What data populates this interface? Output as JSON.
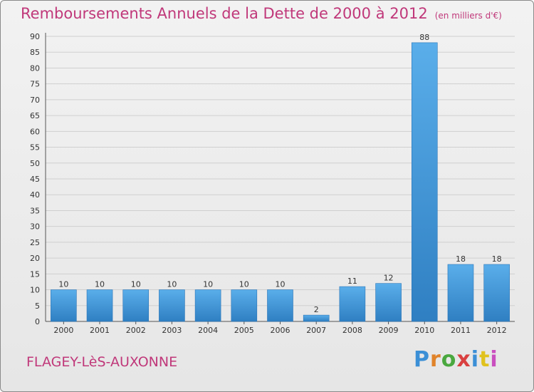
{
  "header": {
    "title": "Remboursements Annuels de la Dette de 2000 à 2012",
    "unit": "(en milliers d'€)"
  },
  "footer": {
    "commune": "FLAGEY-LèS-AUXONNE",
    "brand": "Proxiti",
    "brand_colors": [
      "#3b8fd6",
      "#e0832a",
      "#4aa83f",
      "#d94040",
      "#3b8fd6",
      "#e0c21e",
      "#c94fbf"
    ]
  },
  "colors": {
    "bar": "#4a9fe0",
    "bar_dark": "#2e7fc4",
    "accent": "#c0387a",
    "grid": "#cfcfcf"
  },
  "chart_data": {
    "type": "bar",
    "title": "Remboursements Annuels de la Dette de 2000 à 2012",
    "xlabel": "",
    "ylabel": "",
    "categories": [
      "2000",
      "2001",
      "2002",
      "2003",
      "2004",
      "2005",
      "2006",
      "2007",
      "2008",
      "2009",
      "2010",
      "2011",
      "2012"
    ],
    "values": [
      10,
      10,
      10,
      10,
      10,
      10,
      10,
      2,
      11,
      12,
      88,
      18,
      18
    ],
    "ylim": [
      0,
      90
    ],
    "yticks": [
      0,
      5,
      10,
      15,
      20,
      25,
      30,
      35,
      40,
      45,
      50,
      55,
      60,
      65,
      70,
      75,
      80,
      85,
      90
    ],
    "grid": true
  }
}
